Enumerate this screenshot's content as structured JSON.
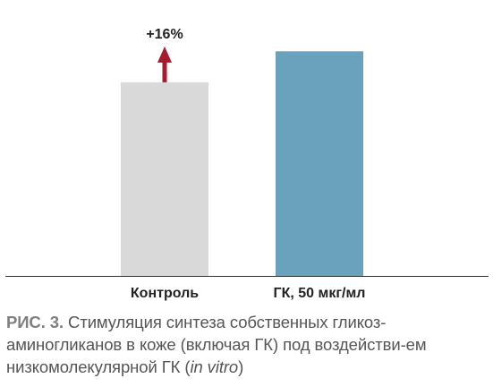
{
  "chart_data": {
    "type": "bar",
    "categories": [
      "Контроль",
      "ГК, 50 мкг/мл"
    ],
    "values": [
      100,
      116
    ],
    "ylim": [
      0,
      124
    ],
    "colors": [
      "#d9d9d9",
      "#6aa2bd"
    ],
    "axis_color": "#333333",
    "grid": false,
    "annotation": {
      "text": "+16%",
      "category": "Контроль",
      "arrow": "up-arrow-icon",
      "color": "#a6192e"
    }
  },
  "caption": {
    "label": "РИС. 3.",
    "text_part1": " Стимуляция синтеза собственных гликоз-аминогликанов в коже (включая ГК) под воздействи-ем низкомолекулярной ГК (",
    "latin": "in vitro",
    "text_part2": ")"
  }
}
